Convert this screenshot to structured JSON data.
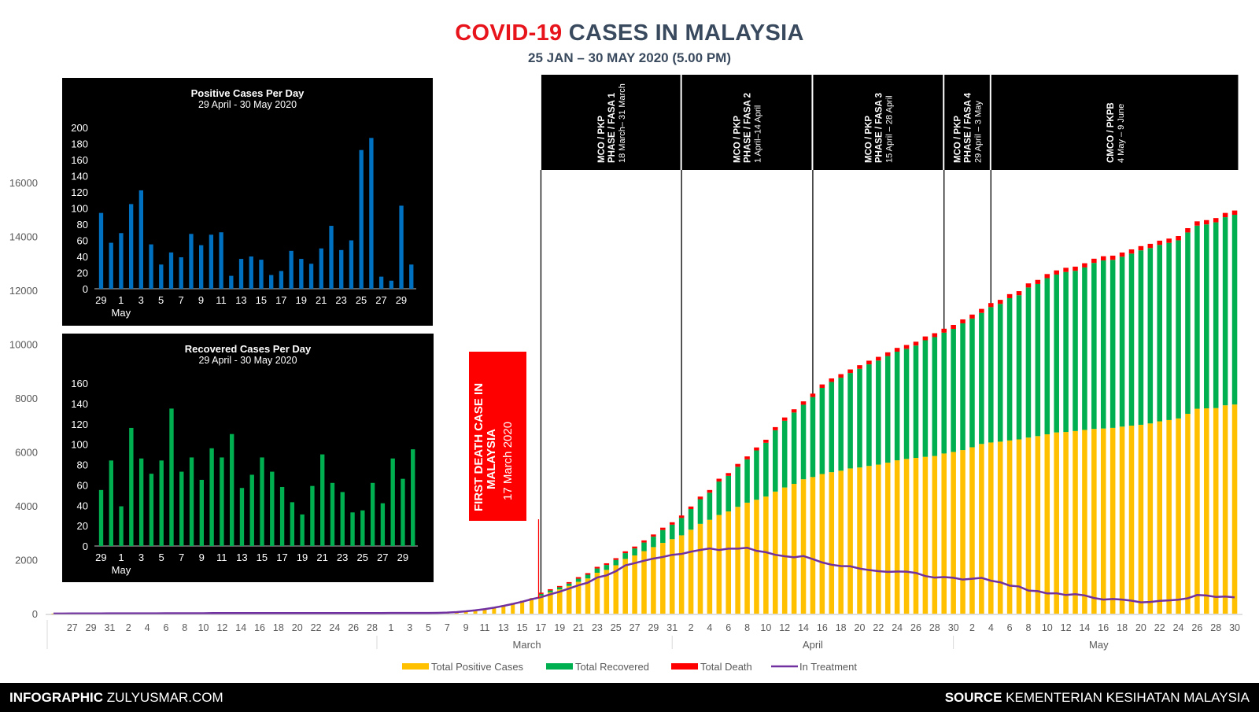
{
  "header": {
    "title_red": "COVID-19",
    "title_rest": " CASES IN MALAYSIA",
    "subtitle": "25 JAN – 30 MAY 2020 (5.00 PM)"
  },
  "footer": {
    "left_bold": "INFOGRAPHIC",
    "left_rest": " ZULYUSMAR.COM",
    "right_bold": "SOURCE",
    "right_rest": " KEMENTERIAN KESIHATAN MALAYSIA"
  },
  "colors": {
    "positive": "#ffc000",
    "recovered": "#00b050",
    "death": "#ff0000",
    "treatment": "#7030a0",
    "inset_positive": "#0070c0",
    "inset_recovered": "#00b050"
  },
  "death_banner": {
    "line1": "FIRST DEATH CASE IN",
    "line2": "MALAYSIA",
    "line3": "17 March 2020"
  },
  "phases": [
    {
      "l1": "MCO / PKP",
      "l2": "PHASE / FASA 1",
      "l3": "18 March– 31 March"
    },
    {
      "l1": "MCO / PKP",
      "l2": "PHASE / FASA 2",
      "l3": "1 April–14 April"
    },
    {
      "l1": "MCO / PKP",
      "l2": "PHASE / FASA 3",
      "l3": "15 April – 28 April"
    },
    {
      "l1": "MCO / PKP",
      "l2": "PHASE / FASA 4",
      "l3": "29 April – 3 May"
    },
    {
      "l1": "CMCO / PKPB",
      "l2": "4 May – 9 June",
      "l3": ""
    }
  ],
  "chart_data": [
    {
      "type": "bar",
      "title": "COVID-19 CASES IN MALAYSIA",
      "ylim": [
        0,
        16000
      ],
      "yticks": [
        0,
        2000,
        4000,
        6000,
        8000,
        10000,
        12000,
        14000,
        16000
      ],
      "xticks": [
        "27",
        "29",
        "31",
        "2",
        "4",
        "6",
        "8",
        "10",
        "12",
        "14",
        "16",
        "18",
        "20",
        "22",
        "24",
        "26",
        "28",
        "1",
        "3",
        "5",
        "7",
        "9",
        "11",
        "13",
        "15",
        "17",
        "19",
        "21",
        "23",
        "25",
        "27",
        "29",
        "31",
        "2",
        "4",
        "6",
        "8",
        "10",
        "12",
        "14",
        "16",
        "18",
        "20",
        "22",
        "24",
        "26",
        "28",
        "30",
        "2",
        "4",
        "6",
        "8",
        "10",
        "12",
        "14",
        "16",
        "18",
        "20",
        "22",
        "24",
        "26",
        "28",
        "30"
      ],
      "months": [
        "March",
        "April",
        "May"
      ],
      "legend": [
        "Total Positive Cases",
        "Total Recovered",
        "Total Death",
        "In Treatment"
      ],
      "dates": [
        "17 Mar",
        "18 Mar",
        "19 Mar",
        "20 Mar",
        "21 Mar",
        "22 Mar",
        "23 Mar",
        "24 Mar",
        "25 Mar",
        "26 Mar",
        "27 Mar",
        "28 Mar",
        "29 Mar",
        "30 Mar",
        "31 Mar",
        "1 Apr",
        "2 Apr",
        "3 Apr",
        "4 Apr",
        "5 Apr",
        "6 Apr",
        "7 Apr",
        "8 Apr",
        "9 Apr",
        "10 Apr",
        "11 Apr",
        "12 Apr",
        "13 Apr",
        "14 Apr",
        "15 Apr",
        "16 Apr",
        "17 Apr",
        "18 Apr",
        "19 Apr",
        "20 Apr",
        "21 Apr",
        "22 Apr",
        "23 Apr",
        "24 Apr",
        "25 Apr",
        "26 Apr",
        "27 Apr",
        "28 Apr",
        "29 Apr",
        "30 Apr",
        "1 May",
        "2 May",
        "3 May",
        "4 May",
        "5 May",
        "6 May",
        "7 May",
        "8 May",
        "9 May",
        "10 May",
        "11 May",
        "12 May",
        "13 May",
        "14 May",
        "15 May",
        "16 May",
        "17 May",
        "18 May",
        "19 May",
        "20 May",
        "21 May",
        "22 May",
        "23 May",
        "24 May",
        "25 May",
        "26 May",
        "27 May",
        "28 May",
        "29 May",
        "30 May"
      ],
      "series": [
        {
          "name": "Total Positive Cases",
          "values": [
            673,
            790,
            900,
            1030,
            1183,
            1306,
            1518,
            1624,
            1796,
            2031,
            2161,
            2320,
            2470,
            2626,
            2766,
            2908,
            3116,
            3333,
            3483,
            3662,
            3793,
            3963,
            4119,
            4228,
            4346,
            4530,
            4683,
            4817,
            4987,
            5072,
            5182,
            5251,
            5305,
            5389,
            5425,
            5482,
            5532,
            5603,
            5691,
            5742,
            5780,
            5820,
            5851,
            5945,
            6002,
            6071,
            6176,
            6298,
            6353,
            6383,
            6428,
            6467,
            6535,
            6589,
            6656,
            6726,
            6742,
            6779,
            6819,
            6855,
            6872,
            6894,
            6941,
            6978,
            7009,
            7059,
            7137,
            7185,
            7245,
            7417,
            7604,
            7619,
            7629,
            7732,
            7762
          ]
        },
        {
          "name": "Total Recovered",
          "values": [
            60,
            70,
            80,
            87,
            114,
            139,
            159,
            183,
            199,
            215,
            259,
            320,
            388,
            479,
            537,
            645,
            767,
            915,
            1005,
            1241,
            1321,
            1487,
            1608,
            1830,
            1995,
            2276,
            2478,
            2647,
            2766,
            2967,
            3197,
            3349,
            3452,
            3542,
            3663,
            3771,
            3862,
            3957,
            4032,
            4087,
            4171,
            4326,
            4413,
            4484,
            4567,
            4702,
            4776,
            4864,
            5025,
            5113,
            5281,
            5351,
            5571,
            5646,
            5796,
            5859,
            5939,
            5945,
            6030,
            6162,
            6236,
            6236,
            6305,
            6384,
            6475,
            6510,
            6548,
            6577,
            6611,
            6731,
            6797,
            6828,
            6894,
            6981,
            7040
          ]
        },
        {
          "name": "Total Death",
          "values": [
            2,
            3,
            3,
            10,
            15,
            16,
            17,
            19,
            20,
            24,
            27,
            35,
            37,
            43,
            45,
            46,
            50,
            53,
            57,
            61,
            61,
            63,
            65,
            67,
            70,
            73,
            76,
            77,
            82,
            83,
            84,
            86,
            88,
            89,
            90,
            92,
            93,
            95,
            96,
            98,
            98,
            98,
            100,
            102,
            103,
            104,
            104,
            105,
            105,
            106,
            106,
            107,
            107,
            108,
            108,
            110,
            111,
            111,
            112,
            112,
            113,
            113,
            113,
            113,
            113,
            113,
            114,
            114,
            115,
            115,
            115,
            115,
            115,
            115,
            115
          ]
        },
        {
          "name": "In Treatment",
          "values": [
            611,
            717,
            817,
            933,
            1054,
            1151,
            1342,
            1422,
            1577,
            1792,
            1875,
            1965,
            2045,
            2104,
            2184,
            2217,
            2299,
            2365,
            2421,
            2360,
            2411,
            2413,
            2446,
            2331,
            2281,
            2184,
            2131,
            2093,
            2139,
            2022,
            1901,
            1816,
            1765,
            1758,
            1672,
            1619,
            1577,
            1551,
            1563,
            1557,
            1511,
            1396,
            1338,
            1359,
            1332,
            1265,
            1296,
            1329,
            1223,
            1164,
            1041,
            1009,
            857,
            835,
            752,
            757,
            692,
            723,
            677,
            581,
            523,
            545,
            523,
            481,
            421,
            436,
            475,
            494,
            519,
            571,
            692,
            676,
            620,
            636,
            607
          ]
        }
      ]
    },
    {
      "type": "bar",
      "title": "Positive Cases Per Day",
      "subtitle": "29 April - 30 May 2020",
      "xlabel": "May",
      "ylim": [
        0,
        200
      ],
      "yticks": [
        0,
        20,
        40,
        60,
        80,
        100,
        120,
        140,
        160,
        180,
        200
      ],
      "xticks": [
        "29",
        "1",
        "3",
        "5",
        "7",
        "9",
        "11",
        "13",
        "15",
        "17",
        "19",
        "21",
        "23",
        "25",
        "27",
        "29"
      ],
      "values": [
        94,
        57,
        69,
        105,
        122,
        55,
        30,
        45,
        39,
        68,
        54,
        67,
        70,
        16,
        37,
        40,
        36,
        17,
        22,
        47,
        37,
        31,
        50,
        78,
        48,
        60,
        172,
        187,
        15,
        10,
        103,
        30
      ]
    },
    {
      "type": "bar",
      "title": "Recovered Cases Per Day",
      "subtitle": "29 April - 30 May 2020",
      "xlabel": "May",
      "ylim": [
        0,
        160
      ],
      "yticks": [
        0,
        20,
        40,
        60,
        80,
        100,
        120,
        140,
        160
      ],
      "xticks": [
        "29",
        "1",
        "3",
        "5",
        "7",
        "9",
        "11",
        "13",
        "15",
        "17",
        "19",
        "21",
        "23",
        "25",
        "27",
        "29"
      ],
      "values": [
        55,
        84,
        39,
        116,
        86,
        71,
        84,
        135,
        73,
        87,
        65,
        96,
        87,
        110,
        57,
        70,
        87,
        73,
        58,
        43,
        31,
        59,
        90,
        62,
        53,
        33,
        35,
        62,
        42,
        86,
        66,
        95
      ]
    }
  ]
}
